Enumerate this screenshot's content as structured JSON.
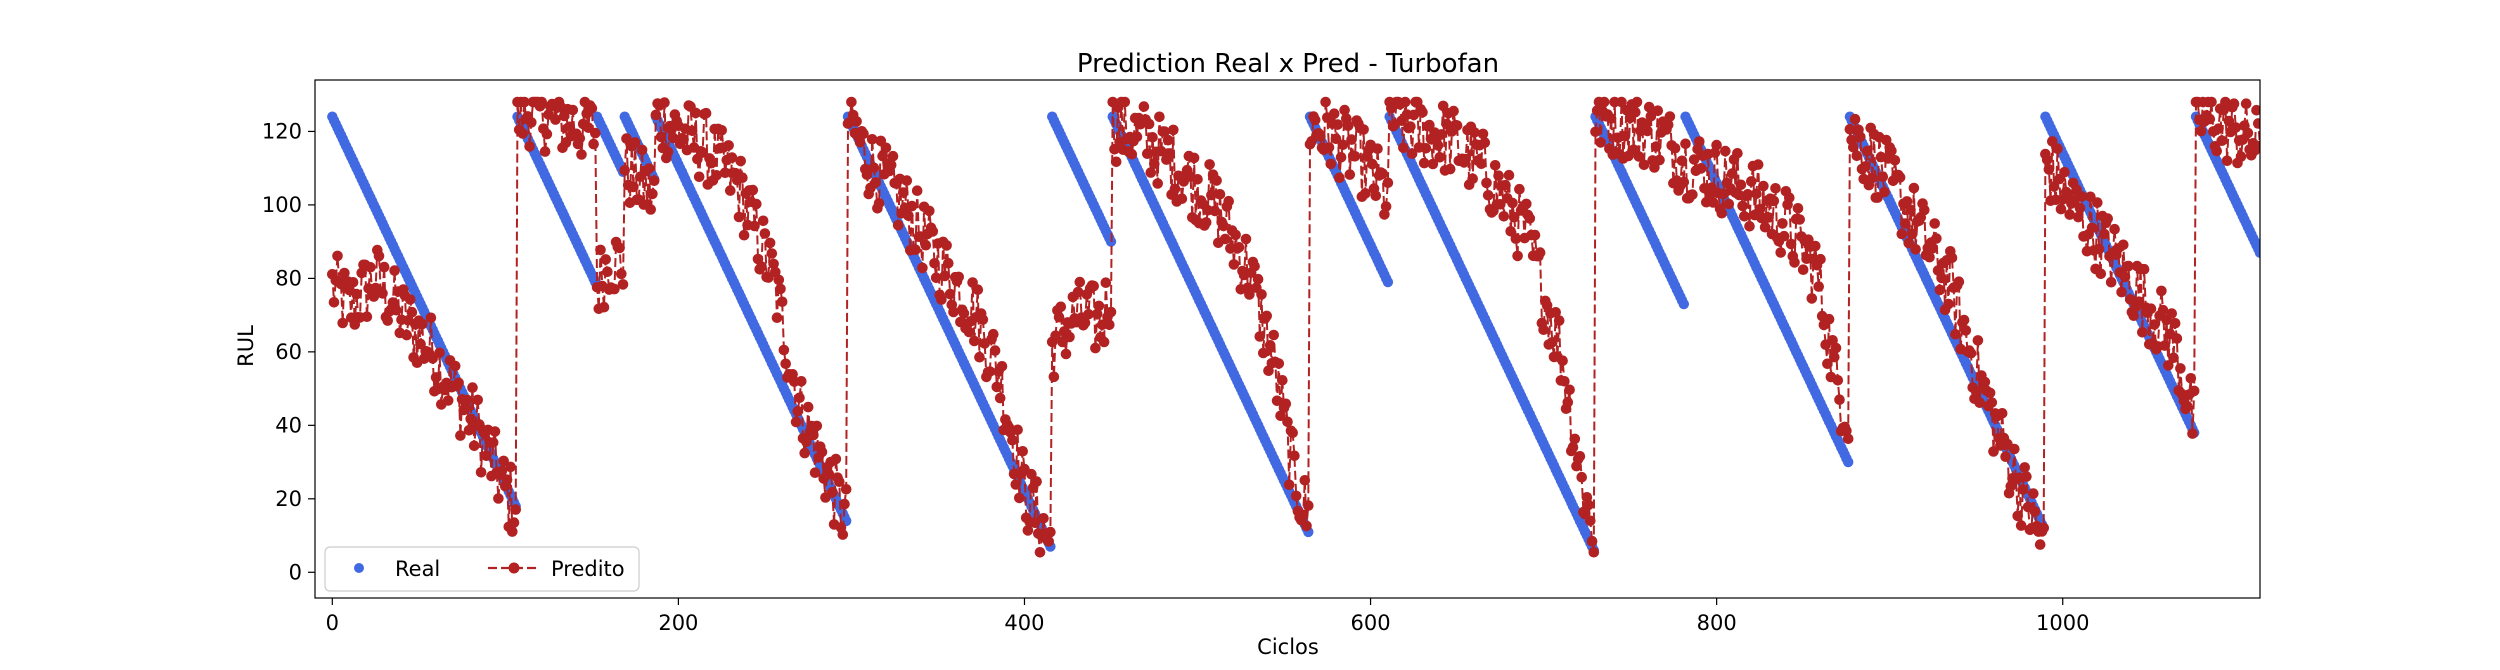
{
  "chart_data": {
    "type": "line",
    "title": "Prediction Real x Pred - Turbofan",
    "xlabel": "Ciclos",
    "ylabel": "RUL",
    "xlim": [
      -10,
      1114
    ],
    "ylim": [
      -7,
      134
    ],
    "x_ticks": [
      "0",
      "200",
      "400",
      "600",
      "800",
      "1000"
    ],
    "y_ticks": [
      "0",
      "20",
      "40",
      "60",
      "80",
      "100",
      "120"
    ],
    "legend": {
      "placement": "lower-left",
      "columns": 2
    },
    "series": [
      {
        "name": "Real",
        "style": "markers",
        "color": "#4169e1",
        "segments": [
          {
            "x_start": 0,
            "y_start": 124,
            "x_end": 106,
            "y_end": 18
          },
          {
            "x_start": 107,
            "y_start": 124,
            "x_end": 152,
            "y_end": 79
          },
          {
            "x_start": 153,
            "y_start": 124,
            "x_end": 168,
            "y_end": 109
          },
          {
            "x_start": 169,
            "y_start": 124,
            "x_end": 186,
            "y_end": 107
          },
          {
            "x_start": 187,
            "y_start": 124,
            "x_end": 297,
            "y_end": 14
          },
          {
            "x_start": 298,
            "y_start": 124,
            "x_end": 415,
            "y_end": 7
          },
          {
            "x_start": 416,
            "y_start": 124,
            "x_end": 450,
            "y_end": 90
          },
          {
            "x_start": 451,
            "y_start": 124,
            "x_end": 564,
            "y_end": 11
          },
          {
            "x_start": 565,
            "y_start": 124,
            "x_end": 610,
            "y_end": 79
          },
          {
            "x_start": 611,
            "y_start": 124,
            "x_end": 729,
            "y_end": 6
          },
          {
            "x_start": 730,
            "y_start": 124,
            "x_end": 781,
            "y_end": 73
          },
          {
            "x_start": 782,
            "y_start": 124,
            "x_end": 876,
            "y_end": 30
          },
          {
            "x_start": 877,
            "y_start": 124,
            "x_end": 989,
            "y_end": 12
          },
          {
            "x_start": 990,
            "y_start": 124,
            "x_end": 1076,
            "y_end": 38
          },
          {
            "x_start": 1077,
            "y_start": 124,
            "x_end": 1114,
            "y_end": 87
          }
        ]
      },
      {
        "name": "Predito",
        "style": "dashed-line-with-markers",
        "color": "#b22222",
        "trend": [
          [
            0,
            78
          ],
          [
            10,
            72
          ],
          [
            25,
            80
          ],
          [
            40,
            70
          ],
          [
            55,
            62
          ],
          [
            70,
            50
          ],
          [
            85,
            38
          ],
          [
            100,
            22
          ],
          [
            106,
            18
          ],
          [
            107,
            124
          ],
          [
            115,
            126
          ],
          [
            125,
            124
          ],
          [
            140,
            122
          ],
          [
            152,
            120
          ],
          [
            153,
            78
          ],
          [
            160,
            85
          ],
          [
            168,
            84
          ],
          [
            169,
            110
          ],
          [
            178,
            106
          ],
          [
            186,
            102
          ],
          [
            187,
            124
          ],
          [
            200,
            120
          ],
          [
            215,
            116
          ],
          [
            235,
            105
          ],
          [
            255,
            80
          ],
          [
            270,
            45
          ],
          [
            285,
            28
          ],
          [
            297,
            14
          ],
          [
            298,
            124
          ],
          [
            310,
            112
          ],
          [
            330,
            100
          ],
          [
            350,
            85
          ],
          [
            370,
            72
          ],
          [
            385,
            55
          ],
          [
            400,
            22
          ],
          [
            415,
            8
          ],
          [
            416,
            62
          ],
          [
            430,
            70
          ],
          [
            445,
            68
          ],
          [
            450,
            78
          ],
          [
            451,
            122
          ],
          [
            470,
            118
          ],
          [
            490,
            110
          ],
          [
            510,
            100
          ],
          [
            530,
            82
          ],
          [
            545,
            55
          ],
          [
            555,
            28
          ],
          [
            564,
            14
          ],
          [
            565,
            122
          ],
          [
            580,
            118
          ],
          [
            595,
            112
          ],
          [
            610,
            102
          ],
          [
            611,
            124
          ],
          [
            625,
            121
          ],
          [
            645,
            118
          ],
          [
            665,
            110
          ],
          [
            690,
            92
          ],
          [
            710,
            60
          ],
          [
            722,
            25
          ],
          [
            729,
            10
          ],
          [
            730,
            124
          ],
          [
            750,
            122
          ],
          [
            770,
            118
          ],
          [
            781,
            112
          ],
          [
            782,
            112
          ],
          [
            800,
            108
          ],
          [
            820,
            103
          ],
          [
            840,
            95
          ],
          [
            858,
            82
          ],
          [
            870,
            50
          ],
          [
            876,
            44
          ],
          [
            877,
            120
          ],
          [
            895,
            110
          ],
          [
            915,
            95
          ],
          [
            935,
            78
          ],
          [
            950,
            55
          ],
          [
            965,
            35
          ],
          [
            980,
            18
          ],
          [
            989,
            7
          ],
          [
            990,
            112
          ],
          [
            1005,
            100
          ],
          [
            1020,
            92
          ],
          [
            1035,
            82
          ],
          [
            1050,
            72
          ],
          [
            1065,
            62
          ],
          [
            1076,
            40
          ],
          [
            1077,
            125
          ],
          [
            1090,
            122
          ],
          [
            1100,
            120
          ],
          [
            1114,
            116
          ]
        ],
        "jitter_amplitude": 10
      }
    ]
  }
}
